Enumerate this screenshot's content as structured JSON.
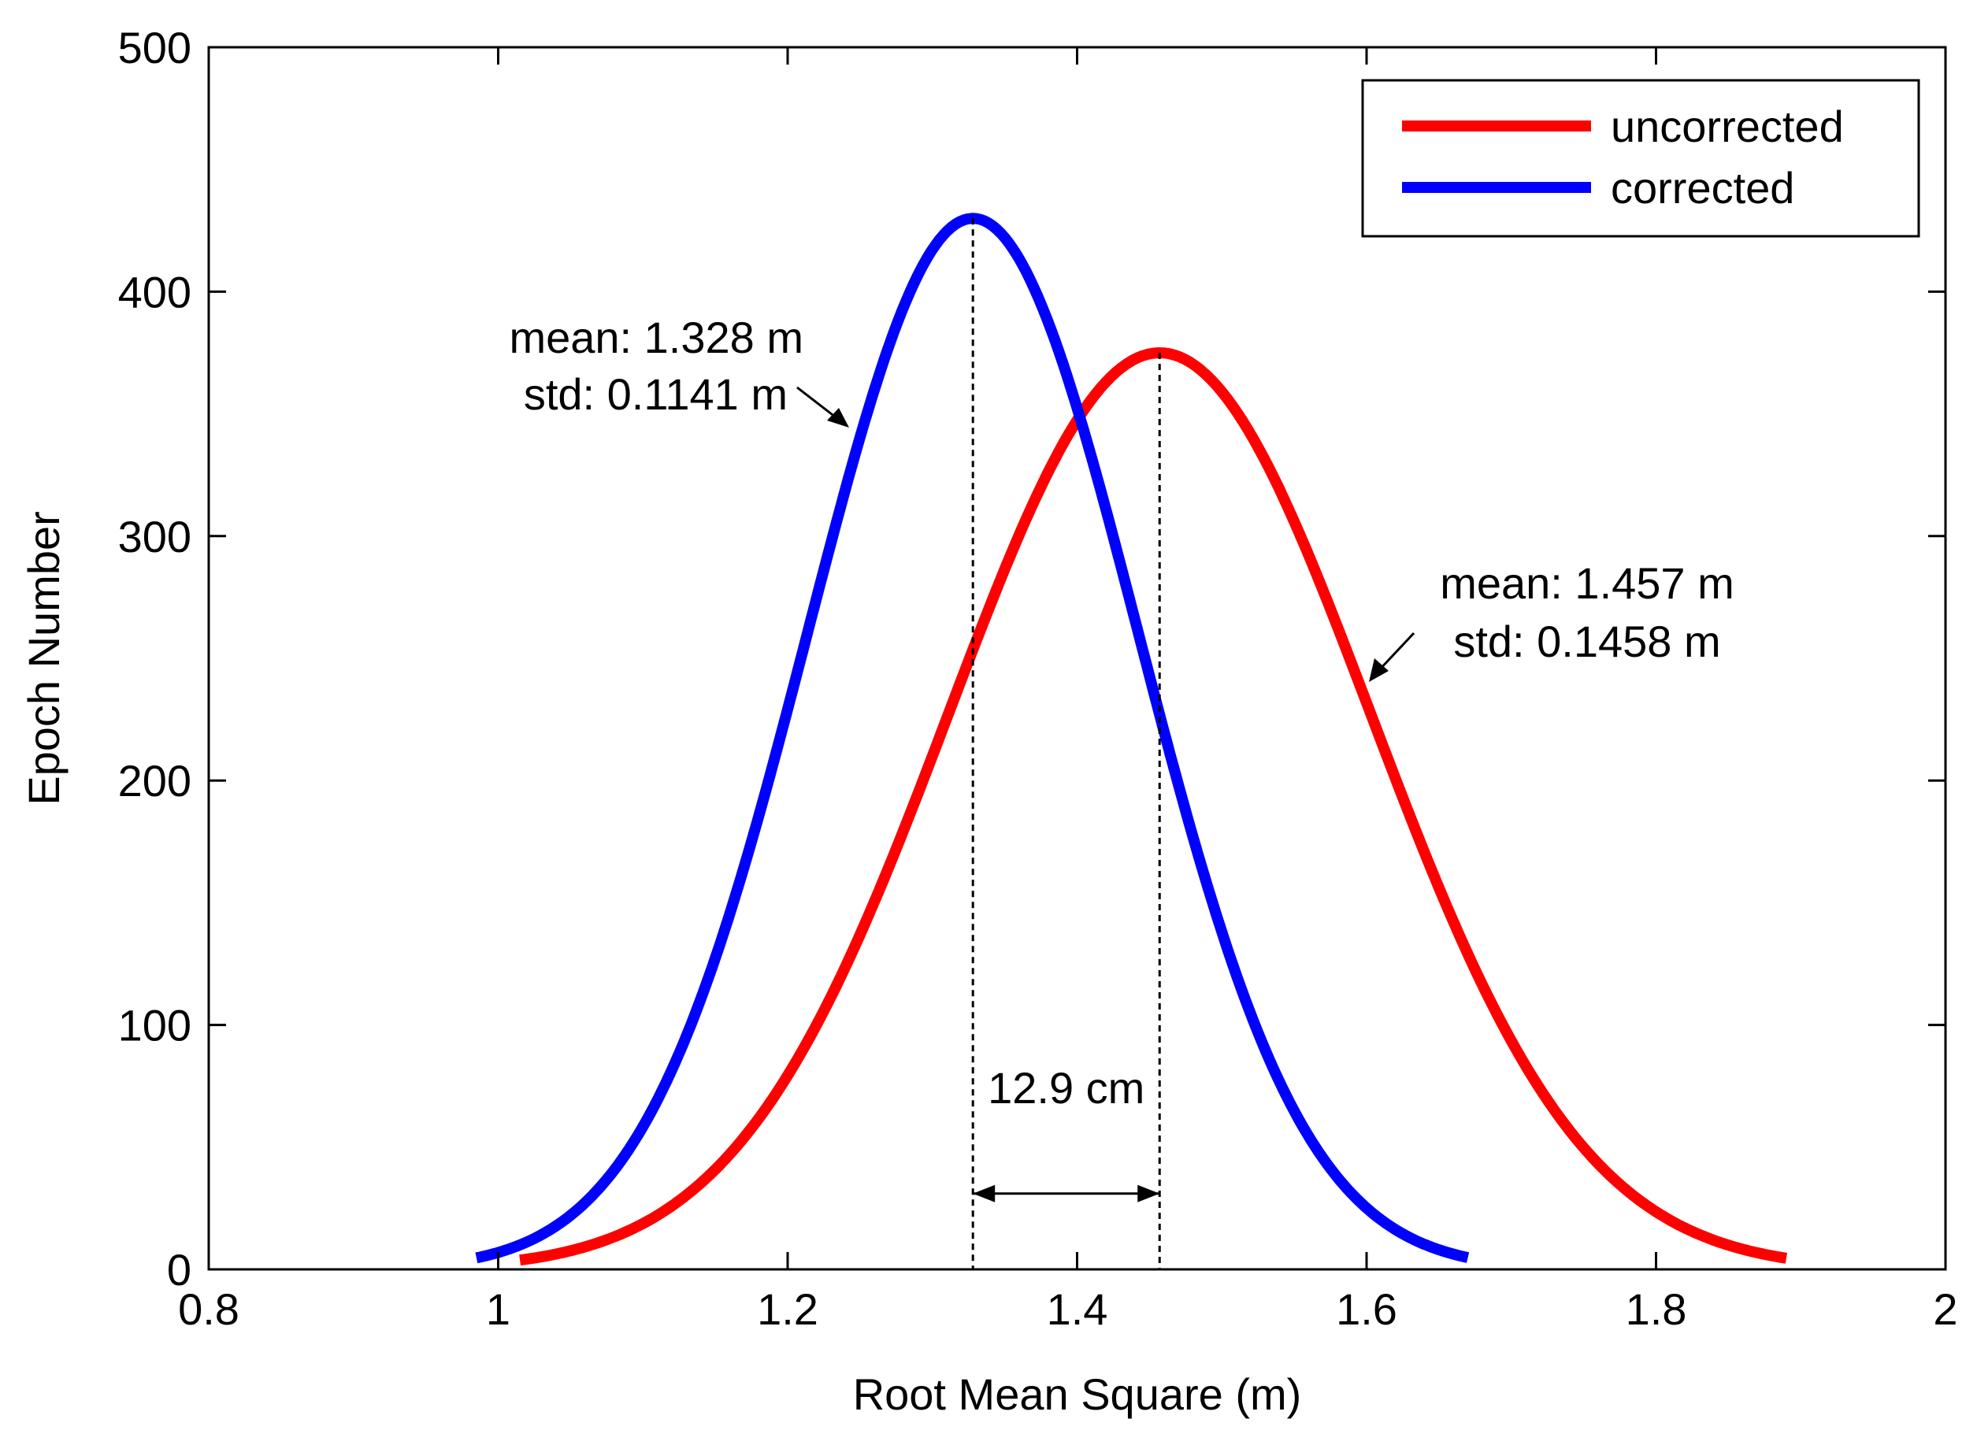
{
  "chart_data": {
    "type": "line",
    "title": "",
    "xlabel": "Root Mean Square (m)",
    "ylabel": "Epoch Number",
    "xlim": [
      0.8,
      2.0
    ],
    "ylim": [
      0,
      500
    ],
    "xticks": [
      0.8,
      1.0,
      1.2,
      1.4,
      1.6,
      1.8,
      2.0
    ],
    "xtick_labels": [
      "0.8",
      "1",
      "1.2",
      "1.4",
      "1.6",
      "1.8",
      "2"
    ],
    "yticks": [
      0,
      100,
      200,
      300,
      400,
      500
    ],
    "ytick_labels": [
      "0",
      "100",
      "200",
      "300",
      "400",
      "500"
    ],
    "grid": false,
    "legend_position": "top-right",
    "series": [
      {
        "name": "uncorrected",
        "color": "#ff0000",
        "mean": 1.457,
        "std": 0.1458,
        "peak": 375,
        "x_range": [
          1.015,
          1.89
        ],
        "sample_points": [
          {
            "x": 1.015,
            "y": 5
          },
          {
            "x": 1.1,
            "y": 28
          },
          {
            "x": 1.2,
            "y": 80
          },
          {
            "x": 1.3,
            "y": 210
          },
          {
            "x": 1.4,
            "y": 345
          },
          {
            "x": 1.457,
            "y": 375
          },
          {
            "x": 1.5,
            "y": 362
          },
          {
            "x": 1.6,
            "y": 240
          },
          {
            "x": 1.7,
            "y": 110
          },
          {
            "x": 1.8,
            "y": 30
          },
          {
            "x": 1.89,
            "y": 5
          }
        ]
      },
      {
        "name": "corrected",
        "color": "#0000ff",
        "mean": 1.328,
        "std": 0.1141,
        "peak": 430,
        "x_range": [
          0.985,
          1.67
        ],
        "sample_points": [
          {
            "x": 0.985,
            "y": 5
          },
          {
            "x": 1.1,
            "y": 60
          },
          {
            "x": 1.2,
            "y": 230
          },
          {
            "x": 1.3,
            "y": 420
          },
          {
            "x": 1.328,
            "y": 430
          },
          {
            "x": 1.4,
            "y": 355
          },
          {
            "x": 1.5,
            "y": 145
          },
          {
            "x": 1.6,
            "y": 25
          },
          {
            "x": 1.67,
            "y": 5
          }
        ]
      }
    ],
    "annotations": [
      {
        "id": "corrected-stats",
        "lines": [
          "mean: 1.328 m",
          "std: 0.1141 m"
        ]
      },
      {
        "id": "uncorrected-stats",
        "lines": [
          "mean: 1.457 m",
          "std: 0.1458 m"
        ]
      },
      {
        "id": "mean-difference",
        "text": "12.9  cm",
        "from": 1.328,
        "to": 1.457
      }
    ]
  }
}
